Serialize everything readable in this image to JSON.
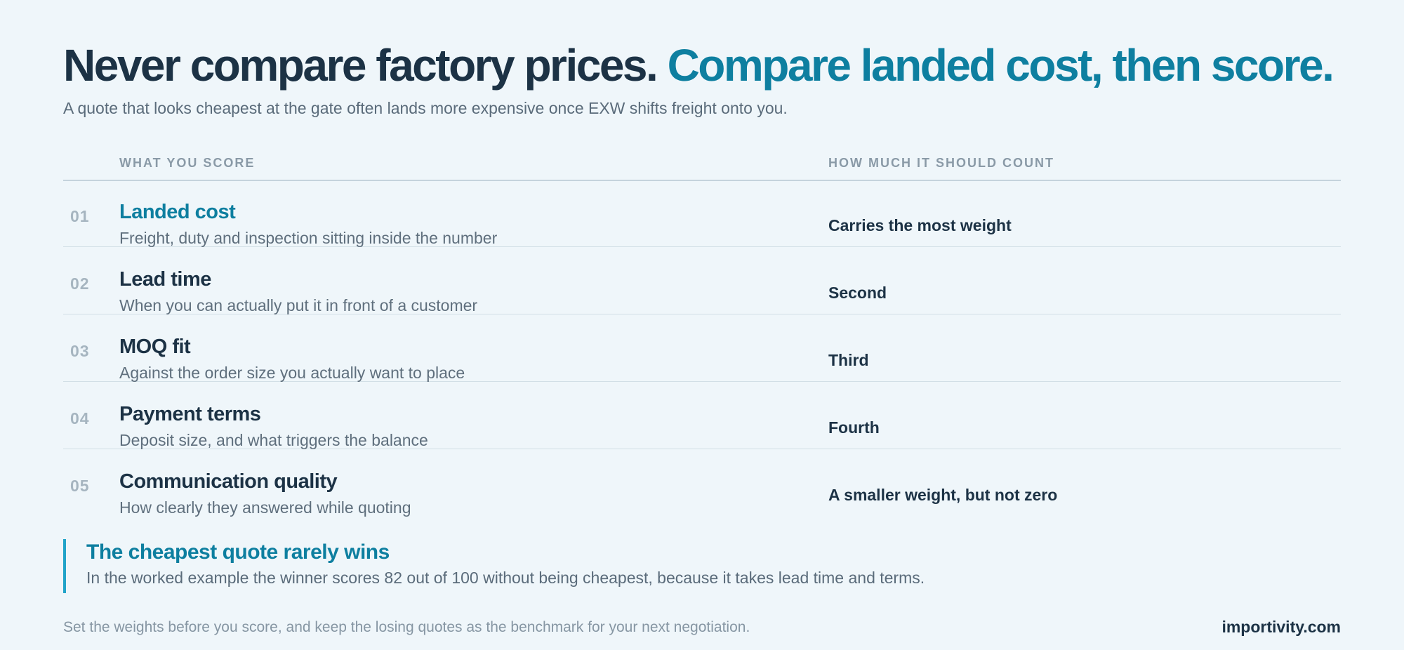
{
  "header": {
    "title_lead": "Never compare factory prices.",
    "title_accent": "Compare landed cost, then score.",
    "subtitle": "A quote that looks cheapest at the gate often lands more expensive once EXW shifts freight onto you."
  },
  "table": {
    "columns": [
      "WHAT YOU SCORE",
      "HOW MUCH IT SHOULD COUNT"
    ],
    "rows": [
      {
        "number": "01",
        "title": "Landed cost",
        "description": "Freight, duty and inspection sitting inside the number",
        "weight": "Carries the most weight"
      },
      {
        "number": "02",
        "title": "Lead time",
        "description": "When you can actually put it in front of a customer",
        "weight": "Second"
      },
      {
        "number": "03",
        "title": "MOQ fit",
        "description": "Against the order size you actually want to place",
        "weight": "Third"
      },
      {
        "number": "04",
        "title": "Payment terms",
        "description": "Deposit size, and what triggers the balance",
        "weight": "Fourth"
      },
      {
        "number": "05",
        "title": "Communication quality",
        "description": "How clearly they answered while quoting",
        "weight": "A smaller weight, but not zero"
      }
    ]
  },
  "callout": {
    "title": "The cheapest quote rarely wins",
    "text": "In the worked example the winner scores 82 out of 100 without being cheapest, because it takes lead time and terms."
  },
  "footer": {
    "note": "Set the weights before you score, and keep the losing quotes as the benchmark for your next negotiation.",
    "brand": "importivity.com"
  }
}
